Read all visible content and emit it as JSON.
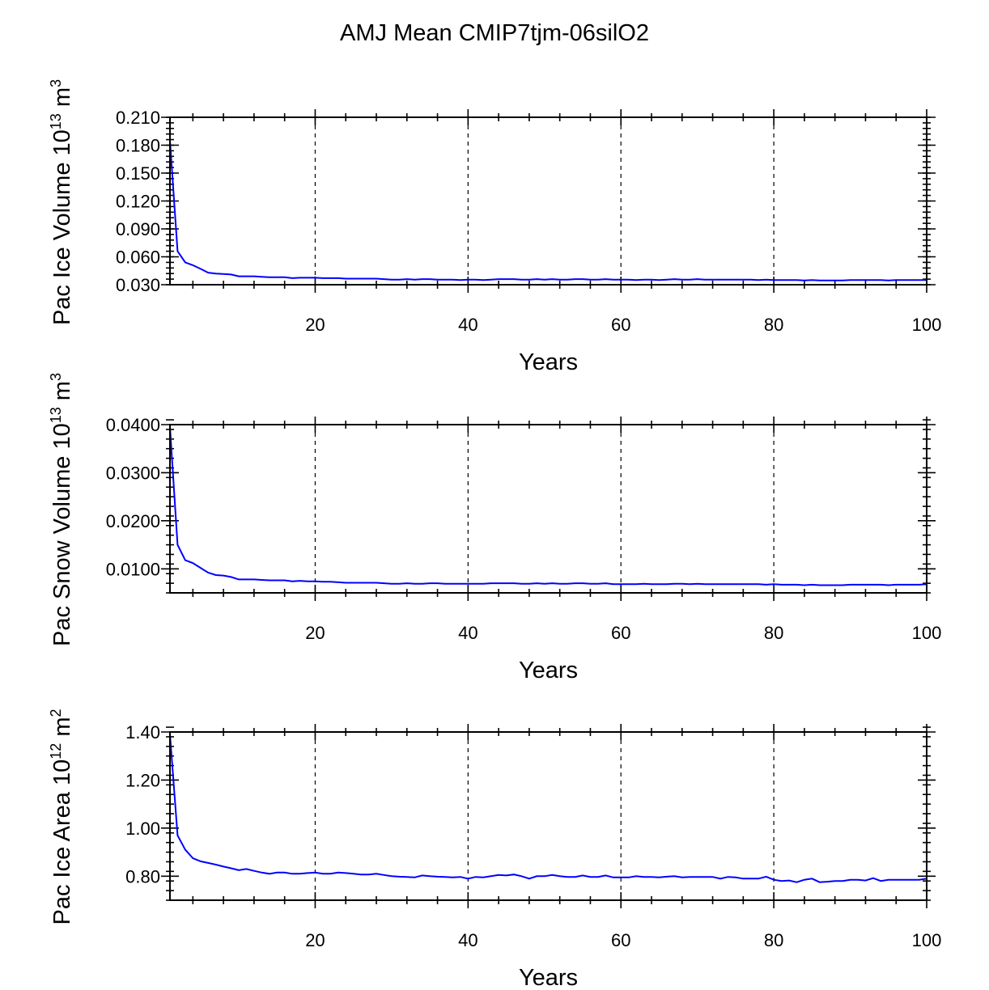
{
  "chart_data": {
    "type": "line",
    "title": "AMJ Mean CMIP7tjm-06silO2",
    "x": [
      1,
      2,
      3,
      4,
      5,
      6,
      7,
      8,
      9,
      10,
      11,
      12,
      13,
      14,
      15,
      16,
      17,
      18,
      19,
      20,
      21,
      22,
      23,
      24,
      25,
      26,
      27,
      28,
      29,
      30,
      31,
      32,
      33,
      34,
      35,
      36,
      37,
      38,
      39,
      40,
      41,
      42,
      43,
      44,
      45,
      46,
      47,
      48,
      49,
      50,
      51,
      52,
      53,
      54,
      55,
      56,
      57,
      58,
      59,
      60,
      61,
      62,
      63,
      64,
      65,
      66,
      67,
      68,
      69,
      70,
      71,
      72,
      73,
      74,
      75,
      76,
      77,
      78,
      79,
      80,
      81,
      82,
      83,
      84,
      85,
      86,
      87,
      88,
      89,
      90,
      91,
      92,
      93,
      94,
      95,
      96,
      97,
      98,
      99,
      100
    ],
    "panels": [
      {
        "name": "pac-ice-volume",
        "ylabel": {
          "text": "Pac Ice Volume 10",
          "exp": "13",
          "unit": " m",
          "unit_exp": "3"
        },
        "xlabel": "Years",
        "xlim": [
          1,
          100
        ],
        "xticks": [
          20,
          40,
          60,
          80,
          100
        ],
        "xtick_labels": [
          "20",
          "40",
          "60",
          "80",
          "100"
        ],
        "ylim": [
          0.03,
          0.21
        ],
        "yticks": [
          0.03,
          0.06,
          0.09,
          0.12,
          0.15,
          0.18,
          0.21
        ],
        "ytick_labels": [
          "0.030",
          "0.060",
          "0.090",
          "0.120",
          "0.150",
          "0.180",
          "0.210"
        ],
        "yminor_step": 0.006,
        "grid_x": true,
        "values": [
          0.185,
          0.066,
          0.054,
          0.051,
          0.047,
          0.043,
          0.042,
          0.0415,
          0.041,
          0.039,
          0.039,
          0.039,
          0.0385,
          0.038,
          0.038,
          0.038,
          0.037,
          0.0375,
          0.0375,
          0.0375,
          0.037,
          0.037,
          0.037,
          0.0365,
          0.0365,
          0.0365,
          0.0365,
          0.0365,
          0.036,
          0.0355,
          0.0355,
          0.036,
          0.0355,
          0.036,
          0.036,
          0.0355,
          0.0355,
          0.0355,
          0.035,
          0.0355,
          0.0355,
          0.035,
          0.0355,
          0.036,
          0.036,
          0.036,
          0.0355,
          0.0355,
          0.036,
          0.0355,
          0.036,
          0.0355,
          0.0355,
          0.036,
          0.036,
          0.0355,
          0.0355,
          0.036,
          0.0355,
          0.0355,
          0.0355,
          0.035,
          0.0355,
          0.0355,
          0.035,
          0.0355,
          0.036,
          0.0355,
          0.0355,
          0.036,
          0.0355,
          0.0355,
          0.0355,
          0.0355,
          0.0355,
          0.0355,
          0.0355,
          0.035,
          0.0355,
          0.035,
          0.035,
          0.035,
          0.035,
          0.0345,
          0.035,
          0.0345,
          0.0345,
          0.0345,
          0.0345,
          0.035,
          0.035,
          0.035,
          0.035,
          0.035,
          0.0345,
          0.035,
          0.035,
          0.035,
          0.035,
          0.035
        ]
      },
      {
        "name": "pac-snow-volume",
        "ylabel": {
          "text": "Pac Snow Volume 10",
          "exp": "13",
          "unit": " m",
          "unit_exp": "3"
        },
        "xlabel": "Years",
        "xlim": [
          1,
          100
        ],
        "xticks": [
          20,
          40,
          60,
          80,
          100
        ],
        "xtick_labels": [
          "20",
          "40",
          "60",
          "80",
          "100"
        ],
        "ylim": [
          0.005,
          0.04
        ],
        "yticks": [
          0.01,
          0.02,
          0.03,
          0.04
        ],
        "ytick_labels": [
          "0.0100",
          "0.0200",
          "0.0300",
          "0.0400"
        ],
        "yminor_step": 0.002,
        "grid_x": true,
        "values": [
          0.0395,
          0.015,
          0.0118,
          0.0112,
          0.0102,
          0.0092,
          0.0087,
          0.0086,
          0.0083,
          0.0078,
          0.0078,
          0.0078,
          0.0077,
          0.0076,
          0.0076,
          0.0076,
          0.0074,
          0.0075,
          0.0074,
          0.0074,
          0.0073,
          0.0073,
          0.0072,
          0.0071,
          0.0071,
          0.0071,
          0.0071,
          0.0071,
          0.007,
          0.0069,
          0.0069,
          0.007,
          0.0069,
          0.0069,
          0.007,
          0.007,
          0.0069,
          0.0069,
          0.0069,
          0.0069,
          0.0069,
          0.0069,
          0.007,
          0.007,
          0.007,
          0.007,
          0.0069,
          0.0069,
          0.007,
          0.0069,
          0.007,
          0.0069,
          0.0069,
          0.007,
          0.007,
          0.0069,
          0.0069,
          0.007,
          0.0068,
          0.0068,
          0.0068,
          0.0068,
          0.0069,
          0.0068,
          0.0068,
          0.0068,
          0.0069,
          0.0069,
          0.0068,
          0.0069,
          0.0068,
          0.0068,
          0.0068,
          0.0068,
          0.0068,
          0.0068,
          0.0068,
          0.0068,
          0.0067,
          0.0068,
          0.0067,
          0.0067,
          0.0067,
          0.0066,
          0.0067,
          0.0066,
          0.0066,
          0.0066,
          0.0066,
          0.0067,
          0.0067,
          0.0067,
          0.0067,
          0.0067,
          0.0066,
          0.0067,
          0.0067,
          0.0067,
          0.0067,
          0.0068
        ]
      },
      {
        "name": "pac-ice-area",
        "ylabel": {
          "text": "Pac Ice Area 10",
          "exp": "12",
          "unit": " m",
          "unit_exp": "2"
        },
        "xlabel": "Years",
        "xlim": [
          1,
          100
        ],
        "xticks": [
          20,
          40,
          60,
          80,
          100
        ],
        "xtick_labels": [
          "20",
          "40",
          "60",
          "80",
          "100"
        ],
        "ylim": [
          0.7,
          1.4
        ],
        "yticks": [
          0.8,
          1.0,
          1.2,
          1.4
        ],
        "ytick_labels": [
          "0.80",
          "1.00",
          "1.20",
          "1.40"
        ],
        "yminor_step": 0.04,
        "grid_x": true,
        "values": [
          1.39,
          0.97,
          0.91,
          0.875,
          0.862,
          0.855,
          0.848,
          0.84,
          0.833,
          0.825,
          0.83,
          0.822,
          0.815,
          0.81,
          0.815,
          0.815,
          0.81,
          0.81,
          0.813,
          0.815,
          0.81,
          0.81,
          0.815,
          0.813,
          0.81,
          0.807,
          0.807,
          0.81,
          0.805,
          0.8,
          0.798,
          0.797,
          0.795,
          0.803,
          0.8,
          0.798,
          0.797,
          0.795,
          0.797,
          0.79,
          0.797,
          0.795,
          0.8,
          0.805,
          0.803,
          0.807,
          0.8,
          0.79,
          0.8,
          0.8,
          0.805,
          0.8,
          0.797,
          0.797,
          0.803,
          0.797,
          0.797,
          0.803,
          0.795,
          0.795,
          0.795,
          0.8,
          0.797,
          0.797,
          0.795,
          0.798,
          0.8,
          0.795,
          0.797,
          0.797,
          0.797,
          0.797,
          0.79,
          0.797,
          0.795,
          0.79,
          0.79,
          0.79,
          0.798,
          0.785,
          0.78,
          0.782,
          0.775,
          0.785,
          0.79,
          0.775,
          0.777,
          0.78,
          0.78,
          0.785,
          0.785,
          0.782,
          0.792,
          0.78,
          0.785,
          0.785,
          0.785,
          0.785,
          0.785,
          0.79
        ]
      }
    ]
  }
}
